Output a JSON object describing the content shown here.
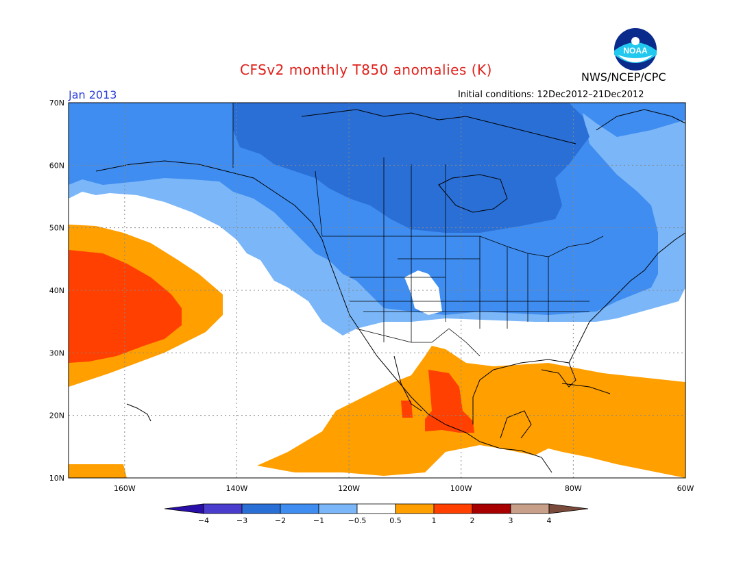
{
  "header": {
    "title": "CFSv2 monthly T850 anomalies (K)",
    "agency": "NWS/NCEP/CPC",
    "period": "Jan 2013",
    "initial_conditions": "Initial conditions: 12Dec2012–21Dec2012",
    "logo_text": "NOAA"
  },
  "map": {
    "region": "North America",
    "lon_range": [
      -170,
      -60
    ],
    "lat_range": [
      10,
      70
    ],
    "lat_labels": [
      "70N",
      "60N",
      "50N",
      "40N",
      "30N",
      "20N",
      "10N"
    ],
    "lon_labels": [
      "160W",
      "140W",
      "120W",
      "100W",
      "80W",
      "60W"
    ],
    "grid": true
  },
  "colorbar": {
    "labels": [
      "−4",
      "−3",
      "−2",
      "−1",
      "−0.5",
      "0.5",
      "1",
      "2",
      "3",
      "4"
    ],
    "colors": [
      "#2a0ea8",
      "#4a3ccc",
      "#2a6fd6",
      "#3f8df0",
      "#7ab6f8",
      "#ffffff",
      "#ff9f00",
      "#ff4000",
      "#a80000",
      "#c8a08a",
      "#7a4a3a"
    ]
  },
  "colors": {
    "title": "#e0201a",
    "period": "#2a3fd8"
  }
}
